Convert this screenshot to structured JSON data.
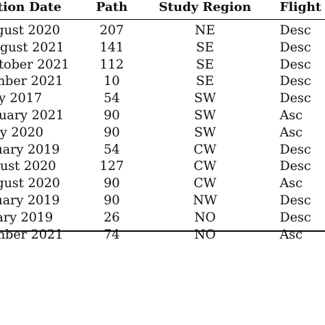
{
  "table": {
    "headers": [
      "tion Date",
      "Path",
      "Study Region",
      "Flight D"
    ],
    "rows": [
      {
        "date": "gust 2020",
        "path": "207",
        "region": "NE",
        "flight": "Desc"
      },
      {
        "date": "gust 2021",
        "path": "141",
        "region": "SE",
        "flight": "Desc"
      },
      {
        "date": "tober 2021",
        "path": "112",
        "region": "SE",
        "flight": "Desc"
      },
      {
        "date": "mber 2021",
        "path": "10",
        "region": "SE",
        "flight": "Desc"
      },
      {
        "date": "ly 2017",
        "path": "54",
        "region": "SW",
        "flight": "Desc"
      },
      {
        "date": "uary 2021",
        "path": "90",
        "region": "SW",
        "flight": "Asc"
      },
      {
        "date": "ly 2020",
        "path": "90",
        "region": "SW",
        "flight": "Asc"
      },
      {
        "date": "uary 2019",
        "path": "54",
        "region": "CW",
        "flight": "Desc"
      },
      {
        "date": "ust 2020",
        "path": "127",
        "region": "CW",
        "flight": "Desc"
      },
      {
        "date": "gust 2020",
        "path": "90",
        "region": "CW",
        "flight": "Asc"
      },
      {
        "date": "uary 2019",
        "path": "90",
        "region": "NW",
        "flight": "Desc"
      },
      {
        "date": "ary 2019",
        "path": "26",
        "region": "NO",
        "flight": "Desc"
      },
      {
        "date": "mber 2021",
        "path": "74",
        "region": "NO",
        "flight": "Asc"
      }
    ]
  }
}
